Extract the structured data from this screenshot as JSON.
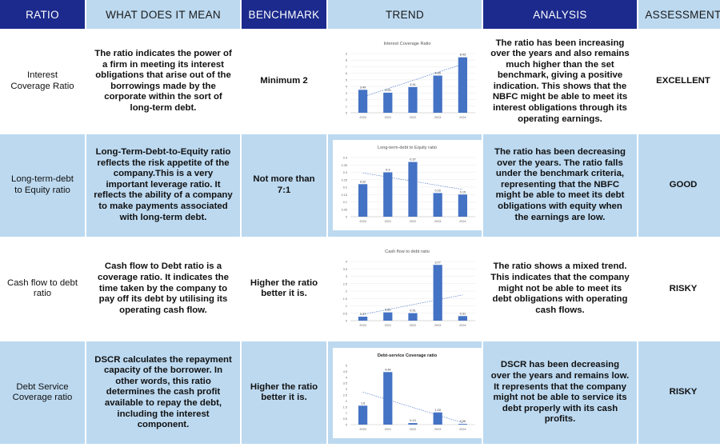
{
  "headers": {
    "ratio": "RATIO",
    "meaning": "WHAT DOES IT MEAN",
    "benchmark": "BENCHMARK",
    "trend": "TREND",
    "analysis": "ANALYSIS",
    "assessment": "ASSESSMENT"
  },
  "colors": {
    "header_dark": "#1b2a8c",
    "header_light": "#bcd9f0",
    "row_blue": "#bcd9f0",
    "bar": "#4472c4",
    "trendline": "#4472c4"
  },
  "rows": [
    {
      "ratio": "Interest Coverage Ratio",
      "meaning": "The ratio indicates the power of a firm in meeting its interest obligations that arise out of the borrowings made by the corporate within the sort of long-term debt.",
      "benchmark": "Minimum 2",
      "analysis": "The ratio has been increasing over the years and also remains much higher than the set benchmark, giving a positive indication. This shows that the NBFC might be able to meet its interest obligations through its operating earnings.",
      "assessment": "EXCELLENT"
    },
    {
      "ratio": "Long-term-debt to Equity ratio",
      "meaning": "Long-Term-Debt-to-Equity ratio reflects the risk appetite of the company.This is a very important leverage ratio. It reflects the ability of a company to make payments associated with long-term debt.",
      "benchmark": "Not more than 7:1",
      "analysis": "The ratio has been decreasing over the years. The ratio falls under the benchmark criteria, representing that the NBFC might be able to meet its debt obligations with equity when the earnings are low.",
      "assessment": "GOOD"
    },
    {
      "ratio": "Cash flow to debt ratio",
      "meaning": "Cash flow to Debt ratio is a coverage ratio. It indicates the time taken by the company to pay off its debt by utilising its operating cash flow.",
      "benchmark": "Higher the ratio better it is.",
      "analysis": "The ratio shows a mixed trend. This indicates that the company might not be able to meet its debt obligations with operating cash flows.",
      "assessment": "RISKY"
    },
    {
      "ratio": "Debt Service Coverage ratio",
      "meaning": "DSCR calculates the repayment capacity of the borrower. In other words, this ratio determines the cash profit available to repay the debt, including the interest component.",
      "benchmark": "Higher the ratio better it is.",
      "analysis": "DSCR has been decreasing over the years and remains low. It represents that the company might not be able to service its debt properly with its cash profits.",
      "assessment": "RISKY"
    }
  ],
  "chart_data": [
    {
      "type": "bar",
      "title": "Interest Coverage Ratio",
      "categories": [
        "2020",
        "2021",
        "2022",
        "2023",
        "2024"
      ],
      "values": [
        3.49,
        3.05,
        3.91,
        5.65,
        8.43
      ],
      "data_labels": [
        "3.49",
        "3.05",
        "3.91",
        "5.65",
        "8.43"
      ],
      "ylim": [
        0,
        9
      ],
      "yticks": [
        "0",
        "1",
        "2",
        "3",
        "4",
        "5",
        "6",
        "7",
        "8",
        "9"
      ],
      "trendline": true,
      "grid": true,
      "title_bold": false
    },
    {
      "type": "bar",
      "title": "Long-term-debt to Equity ratio",
      "categories": [
        "2020",
        "2021",
        "2022",
        "2023",
        "2024"
      ],
      "values": [
        0.22,
        0.3,
        0.37,
        0.16,
        0.15
      ],
      "data_labels": [
        "0.22",
        "0.3",
        "0.37",
        "0.16",
        "0.15"
      ],
      "ylim": [
        0,
        0.4
      ],
      "yticks": [
        "0",
        "0.05",
        "0.1",
        "0.15",
        "0.2",
        "0.25",
        "0.3",
        "0.35",
        "0.4"
      ],
      "trendline": true,
      "grid": true,
      "title_bold": false
    },
    {
      "type": "bar",
      "title": "Cash flow to debt ratio",
      "categories": [
        "2020",
        "2021",
        "2022",
        "2023",
        "2024"
      ],
      "values": [
        0.27,
        0.56,
        0.51,
        3.77,
        0.31
      ],
      "data_labels": [
        "0.27",
        "0.56",
        "0.51",
        "3.77",
        "0.31"
      ],
      "ylim": [
        0,
        4
      ],
      "yticks": [
        "0",
        "0.5",
        "1",
        "1.5",
        "2",
        "2.5",
        "3",
        "3.5",
        "4"
      ],
      "trendline": true,
      "grid": true,
      "title_bold": false
    },
    {
      "type": "bar",
      "title": "Debt-service Coverage ratio",
      "categories": [
        "2020",
        "2021",
        "2022",
        "2023",
        "2024"
      ],
      "values": [
        1.6,
        4.44,
        0.13,
        1.03,
        0.06
      ],
      "data_labels": [
        "1.6",
        "4.44",
        "0.13",
        "1.03",
        "0.06"
      ],
      "ylim": [
        0,
        5
      ],
      "yticks": [
        "0",
        "0.5",
        "1",
        "1.5",
        "2",
        "2.5",
        "3",
        "3.5",
        "4",
        "4.5",
        "5"
      ],
      "trendline": true,
      "grid": false,
      "title_bold": true
    }
  ]
}
